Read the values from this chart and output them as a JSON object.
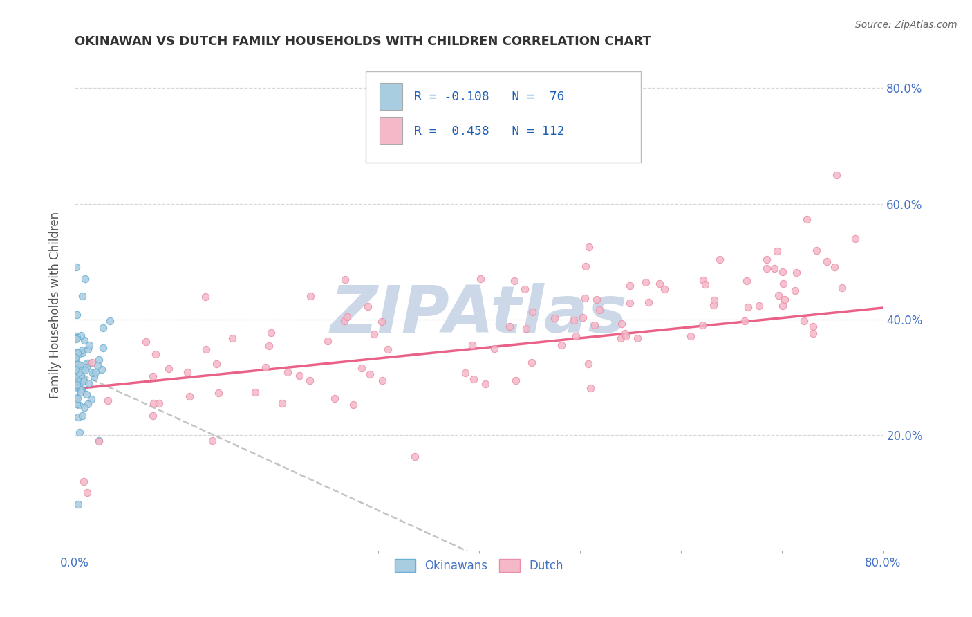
{
  "title": "OKINAWAN VS DUTCH FAMILY HOUSEHOLDS WITH CHILDREN CORRELATION CHART",
  "source": "Source: ZipAtlas.com",
  "ylabel": "Family Households with Children",
  "watermark": "ZIPAtlas",
  "xlim": [
    0.0,
    0.8
  ],
  "ylim": [
    0.0,
    0.85
  ],
  "xticks": [
    0.0,
    0.1,
    0.2,
    0.3,
    0.4,
    0.5,
    0.6,
    0.7,
    0.8
  ],
  "yticks": [
    0.2,
    0.4,
    0.6,
    0.8
  ],
  "xticklabels": [
    "0.0%",
    "",
    "",
    "",
    "",
    "",
    "",
    "",
    "80.0%"
  ],
  "yticklabels": [
    "20.0%",
    "40.0%",
    "60.0%",
    "80.0%"
  ],
  "scatter_okinawan_color": "#a8cce0",
  "scatter_okinawan_edge": "#6aafd4",
  "scatter_dutch_color": "#f5b8c8",
  "scatter_dutch_edge": "#e890a8",
  "trendline_okinawan_color": "#aaaaaa",
  "trendline_dutch_color": "#e8507a",
  "background_color": "#ffffff",
  "grid_color": "#cccccc",
  "title_color": "#333333",
  "axis_label_color": "#555555",
  "tick_label_color": "#4472c4",
  "watermark_color": "#ccd8e8",
  "legend_box_color": "#aec6e8",
  "legend_text_color": "#1a5fb4",
  "okinawan_R": -0.108,
  "okinawan_N": 76,
  "dutch_R": 0.458,
  "dutch_N": 112
}
